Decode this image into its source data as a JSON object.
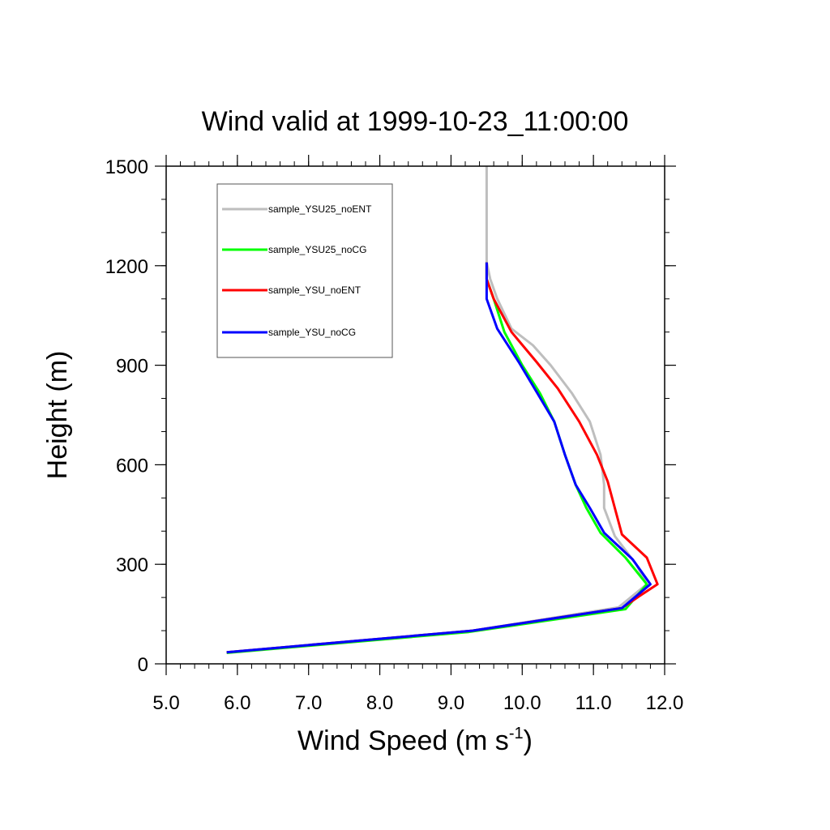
{
  "chart_data": {
    "type": "line",
    "title": "Wind valid at 1999-10-23_11:00:00",
    "xlabel": {
      "main": "Wind Speed (m s",
      "sup": "-1",
      "close": ")"
    },
    "ylabel": "Height (m)",
    "xlim": [
      5.0,
      12.0
    ],
    "ylim": [
      0,
      1500
    ],
    "x_ticks": [
      5.0,
      6.0,
      7.0,
      8.0,
      9.0,
      10.0,
      11.0,
      12.0
    ],
    "x_tick_labels": [
      "5.0",
      "6.0",
      "7.0",
      "8.0",
      "9.0",
      "10.0",
      "11.0",
      "12.0"
    ],
    "y_ticks": [
      0,
      300,
      600,
      900,
      1200,
      1500
    ],
    "y_tick_labels": [
      "0",
      "300",
      "600",
      "900",
      "1200",
      "1500"
    ],
    "grid": false,
    "legend_position": "top-left",
    "series": [
      {
        "name": "sample_YSU25_noENT",
        "color": "#bebebe",
        "points": [
          [
            5.85,
            35
          ],
          [
            9.3,
            100
          ],
          [
            11.35,
            170
          ],
          [
            11.75,
            240
          ],
          [
            11.6,
            300
          ],
          [
            11.3,
            385
          ],
          [
            11.15,
            470
          ],
          [
            11.15,
            540
          ],
          [
            11.1,
            630
          ],
          [
            10.95,
            730
          ],
          [
            10.7,
            815
          ],
          [
            10.4,
            900
          ],
          [
            10.15,
            960
          ],
          [
            9.85,
            1010
          ],
          [
            9.65,
            1100
          ],
          [
            9.55,
            1160
          ],
          [
            9.5,
            1210
          ],
          [
            9.5,
            1300
          ],
          [
            9.5,
            1500
          ]
        ]
      },
      {
        "name": "sample_YSU25_noCG",
        "color": "#00ff00",
        "points": [
          [
            5.85,
            33
          ],
          [
            9.25,
            96
          ],
          [
            11.45,
            165
          ],
          [
            11.75,
            240
          ],
          [
            11.45,
            320
          ],
          [
            11.1,
            395
          ],
          [
            10.9,
            470
          ],
          [
            10.75,
            540
          ],
          [
            10.6,
            630
          ],
          [
            10.45,
            730
          ],
          [
            10.25,
            815
          ],
          [
            10.0,
            900
          ],
          [
            9.75,
            1000
          ],
          [
            9.6,
            1100
          ],
          [
            9.5,
            1160
          ],
          [
            9.5,
            1210
          ]
        ]
      },
      {
        "name": "sample_YSU_noENT",
        "color": "#ff0000",
        "points": [
          [
            5.85,
            35
          ],
          [
            9.3,
            100
          ],
          [
            11.4,
            168
          ],
          [
            11.65,
            205
          ],
          [
            11.9,
            240
          ],
          [
            11.75,
            320
          ],
          [
            11.4,
            390
          ],
          [
            11.3,
            470
          ],
          [
            11.2,
            550
          ],
          [
            11.05,
            630
          ],
          [
            10.8,
            730
          ],
          [
            10.5,
            830
          ],
          [
            10.2,
            910
          ],
          [
            9.85,
            1000
          ],
          [
            9.6,
            1100
          ],
          [
            9.5,
            1160
          ],
          [
            9.5,
            1210
          ]
        ]
      },
      {
        "name": "sample_YSU_noCG",
        "color": "#0000ff",
        "points": [
          [
            5.85,
            35
          ],
          [
            9.3,
            100
          ],
          [
            11.4,
            168
          ],
          [
            11.8,
            240
          ],
          [
            11.55,
            315
          ],
          [
            11.15,
            395
          ],
          [
            10.95,
            470
          ],
          [
            10.75,
            540
          ],
          [
            10.6,
            630
          ],
          [
            10.45,
            730
          ],
          [
            10.2,
            820
          ],
          [
            9.95,
            910
          ],
          [
            9.65,
            1010
          ],
          [
            9.5,
            1100
          ],
          [
            9.5,
            1160
          ],
          [
            9.5,
            1210
          ]
        ]
      }
    ]
  }
}
